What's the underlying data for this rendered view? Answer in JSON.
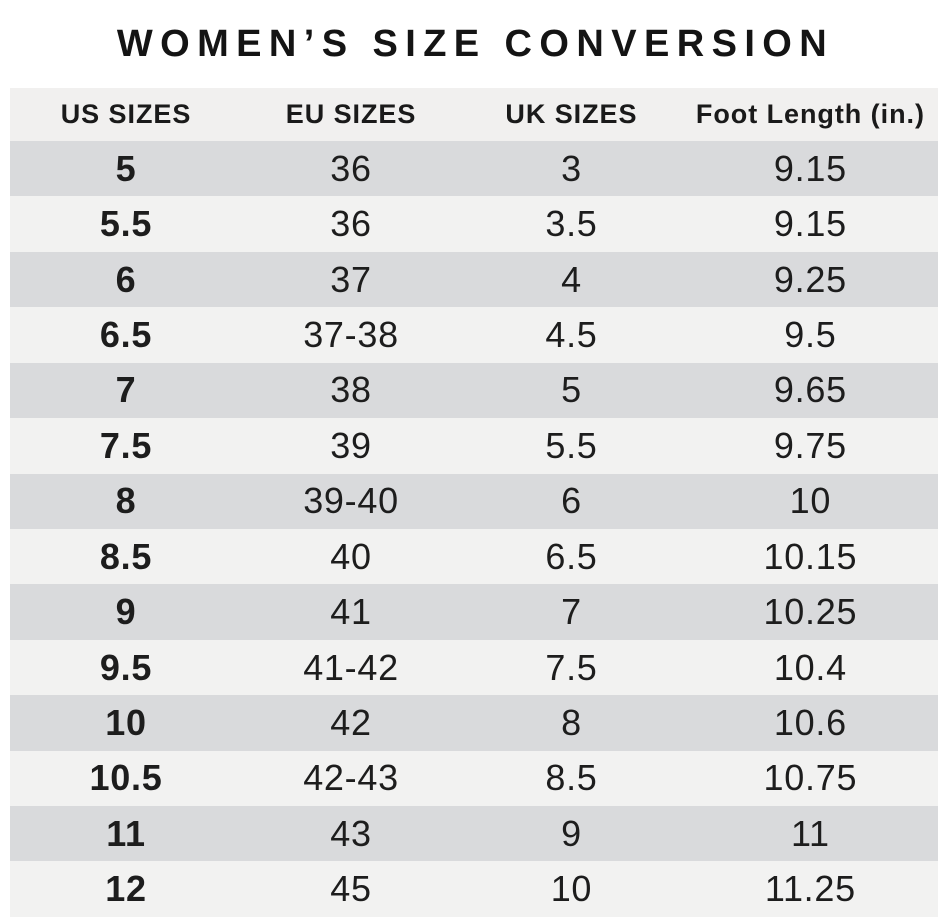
{
  "title": "WOMEN’S SIZE CONVERSION",
  "table": {
    "headers": [
      "US SIZES",
      "EU SIZES",
      "UK SIZES",
      "Foot Length (in.)"
    ],
    "rows": [
      [
        "5",
        "36",
        "3",
        "9.15"
      ],
      [
        "5.5",
        "36",
        "3.5",
        "9.15"
      ],
      [
        "6",
        "37",
        "4",
        "9.25"
      ],
      [
        "6.5",
        "37-38",
        "4.5",
        "9.5"
      ],
      [
        "7",
        "38",
        "5",
        "9.65"
      ],
      [
        "7.5",
        "39",
        "5.5",
        "9.75"
      ],
      [
        "8",
        "39-40",
        "6",
        "10"
      ],
      [
        "8.5",
        "40",
        "6.5",
        "10.15"
      ],
      [
        "9",
        "41",
        "7",
        "10.25"
      ],
      [
        "9.5",
        "41-42",
        "7.5",
        "10.4"
      ],
      [
        "10",
        "42",
        "8",
        "10.6"
      ],
      [
        "10.5",
        "42-43",
        "8.5",
        "10.75"
      ],
      [
        "11",
        "43",
        "9",
        "11"
      ],
      [
        "12",
        "45",
        "10",
        "11.25"
      ]
    ]
  },
  "colors": {
    "row_dark": "#d9dadc",
    "row_light": "#f2f2f1",
    "header_bg": "#f1f0ef",
    "text": "#1c1c1c",
    "background": "#ffffff"
  }
}
